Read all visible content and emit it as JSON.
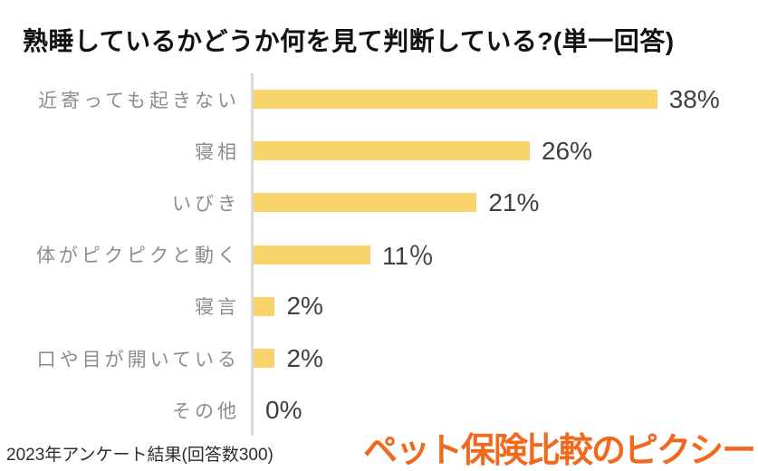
{
  "title": "熟睡しているかどうか何を見て判断している?(単一回答)",
  "chart_data": {
    "type": "bar",
    "orientation": "horizontal",
    "title": "熟睡しているかどうか何を見て判断している?(単一回答)",
    "categories": [
      "近寄っても起きない",
      "寝相",
      "いびき",
      "体がピクピクと動く",
      "寝言",
      "口や目が開いている",
      "その他"
    ],
    "values": [
      38,
      26,
      21,
      11,
      2,
      2,
      0
    ],
    "value_labels": [
      "38%",
      "26%",
      "21%",
      "11％",
      "2%",
      "2%",
      "0%"
    ],
    "xlabel": "",
    "ylabel": "",
    "xlim": [
      0,
      47
    ],
    "grid": false,
    "legend": false,
    "data_labels_position": "end-of-bar",
    "bar_color": "#f9d36b",
    "axis_line_color": "#d9d9d9",
    "category_label_color": "#8c8c8c",
    "value_label_color": "#404040",
    "title_color": "#111111"
  },
  "footer": {
    "note": "2023年アンケート結果(回答数300)",
    "logo_text": "ペット保険比較のピクシー",
    "logo_color": "#f2691d"
  }
}
